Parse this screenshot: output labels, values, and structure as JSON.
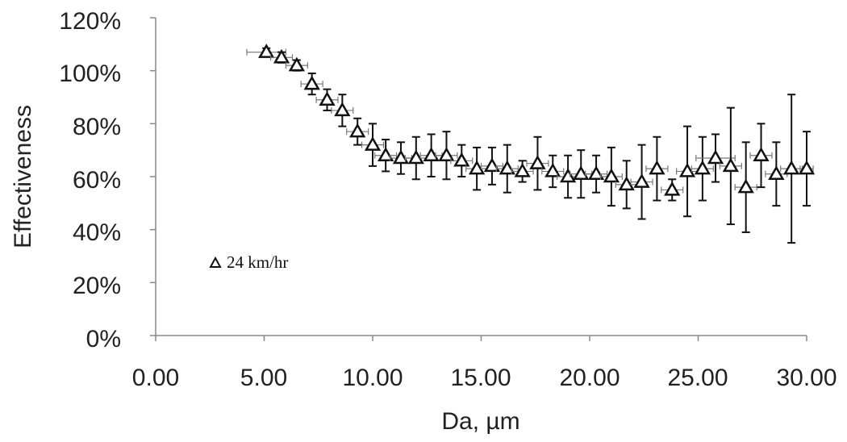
{
  "chart_data": {
    "type": "scatter",
    "title": "",
    "xlabel": "Da, µm",
    "ylabel": "Effectiveness",
    "xlim": [
      0,
      30
    ],
    "ylim": [
      0,
      120
    ],
    "xticks": [
      "0.00",
      "5.00",
      "10.00",
      "15.00",
      "20.00",
      "25.00",
      "30.00"
    ],
    "yticks": [
      "0%",
      "20%",
      "40%",
      "60%",
      "80%",
      "100%",
      "120%"
    ],
    "grid": false,
    "legend_position": "left-middle",
    "marker": "open-triangle",
    "colors": {
      "marker": "#111111",
      "error_bar": "#111111",
      "x_error_bar": "#777777",
      "axis": "#888888"
    },
    "series": [
      {
        "name": "24 km/hr",
        "points": [
          {
            "x": 5.1,
            "y": 107,
            "yerr": 1.5,
            "xerr": 0.9
          },
          {
            "x": 5.8,
            "y": 105,
            "yerr": 2,
            "xerr": 0.5
          },
          {
            "x": 6.5,
            "y": 102,
            "yerr": 2,
            "xerr": 0.5
          },
          {
            "x": 7.2,
            "y": 95,
            "yerr": 4,
            "xerr": 0.5
          },
          {
            "x": 7.9,
            "y": 89,
            "yerr": 4,
            "xerr": 0.5
          },
          {
            "x": 8.6,
            "y": 85,
            "yerr": 6,
            "xerr": 0.5
          },
          {
            "x": 9.3,
            "y": 77,
            "yerr": 5,
            "xerr": 0.5
          },
          {
            "x": 10.0,
            "y": 72,
            "yerr": 8,
            "xerr": 0.5
          },
          {
            "x": 10.6,
            "y": 68,
            "yerr": 6,
            "xerr": 0.5
          },
          {
            "x": 11.3,
            "y": 67,
            "yerr": 6,
            "xerr": 0.5
          },
          {
            "x": 12.0,
            "y": 67,
            "yerr": 8,
            "xerr": 0.5
          },
          {
            "x": 12.7,
            "y": 68,
            "yerr": 8,
            "xerr": 0.5
          },
          {
            "x": 13.4,
            "y": 68,
            "yerr": 9,
            "xerr": 0.5
          },
          {
            "x": 14.1,
            "y": 66,
            "yerr": 6,
            "xerr": 0.5
          },
          {
            "x": 14.8,
            "y": 63,
            "yerr": 8,
            "xerr": 0.5
          },
          {
            "x": 15.5,
            "y": 64,
            "yerr": 7,
            "xerr": 0.5
          },
          {
            "x": 16.2,
            "y": 63,
            "yerr": 9,
            "xerr": 0.5
          },
          {
            "x": 16.9,
            "y": 62,
            "yerr": 4,
            "xerr": 0.5
          },
          {
            "x": 17.6,
            "y": 65,
            "yerr": 10,
            "xerr": 0.5
          },
          {
            "x": 18.3,
            "y": 62,
            "yerr": 6,
            "xerr": 0.5
          },
          {
            "x": 19.0,
            "y": 60,
            "yerr": 8,
            "xerr": 0.5
          },
          {
            "x": 19.6,
            "y": 61,
            "yerr": 9,
            "xerr": 0.5
          },
          {
            "x": 20.3,
            "y": 61,
            "yerr": 7,
            "xerr": 0.5
          },
          {
            "x": 21.0,
            "y": 60,
            "yerr": 11,
            "xerr": 0.5
          },
          {
            "x": 21.7,
            "y": 57,
            "yerr": 9,
            "xerr": 0.5
          },
          {
            "x": 22.4,
            "y": 58,
            "yerr": 14,
            "xerr": 0.5
          },
          {
            "x": 23.1,
            "y": 63,
            "yerr": 12,
            "xerr": 0.5
          },
          {
            "x": 23.8,
            "y": 55,
            "yerr": 4,
            "xerr": 0.5
          },
          {
            "x": 24.5,
            "y": 62,
            "yerr": 17,
            "xerr": 0.5
          },
          {
            "x": 25.2,
            "y": 63,
            "yerr": 12,
            "xerr": 0.5
          },
          {
            "x": 25.8,
            "y": 67,
            "yerr": 9,
            "xerr": 0.9
          },
          {
            "x": 26.5,
            "y": 64,
            "yerr": 22,
            "xerr": 0.5
          },
          {
            "x": 27.2,
            "y": 56,
            "yerr": 17,
            "xerr": 0.5
          },
          {
            "x": 27.9,
            "y": 68,
            "yerr": 12,
            "xerr": 0.5
          },
          {
            "x": 28.6,
            "y": 61,
            "yerr": 12,
            "xerr": 0.5
          },
          {
            "x": 29.3,
            "y": 63,
            "yerr": 28,
            "xerr": 0.5
          },
          {
            "x": 30.0,
            "y": 63,
            "yerr": 14,
            "xerr": 0.3
          }
        ]
      }
    ]
  }
}
